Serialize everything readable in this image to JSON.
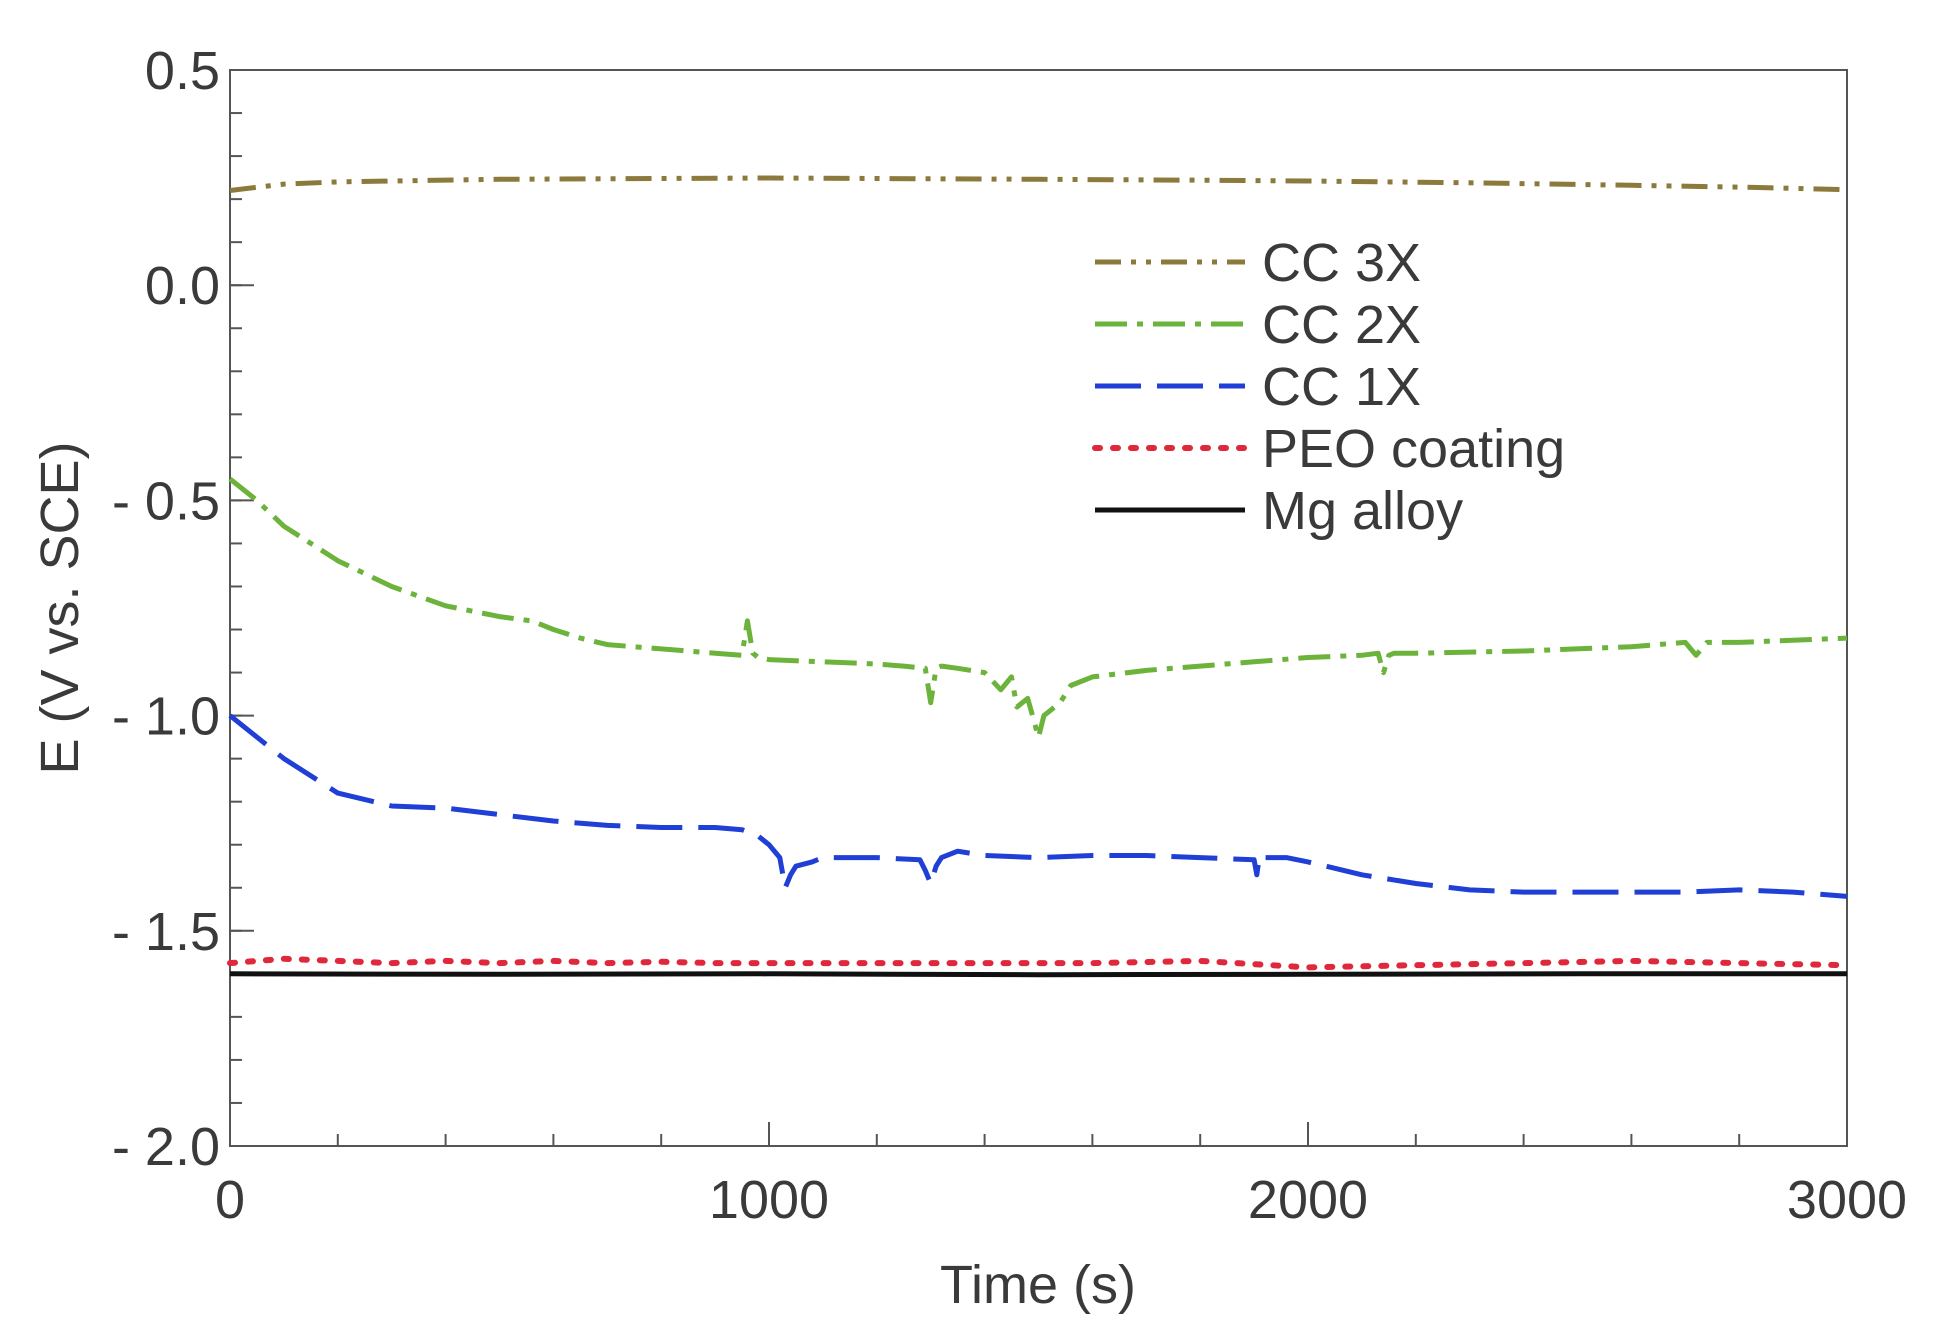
{
  "chart_data": {
    "type": "line",
    "xlabel": "Time (s)",
    "ylabel": "E  (V vs. SCE)",
    "xlim": [
      0,
      3000
    ],
    "ylim": [
      -2.0,
      0.5
    ],
    "xticks": [
      {
        "value": 0,
        "label": "0"
      },
      {
        "value": 1000,
        "label": "1000"
      },
      {
        "value": 2000,
        "label": "2000"
      },
      {
        "value": 3000,
        "label": "3000"
      }
    ],
    "yticks": [
      {
        "value": 0.5,
        "label": "0.5"
      },
      {
        "value": 0.0,
        "label": "0.0"
      },
      {
        "value": -0.5,
        "label": "- 0.5"
      },
      {
        "value": -1.0,
        "label": "- 1.0"
      },
      {
        "value": -1.5,
        "label": "- 1.5"
      },
      {
        "value": -2.0,
        "label": "- 2.0"
      }
    ],
    "x_minor_step": 200,
    "y_minor_step": 0.1,
    "grid": false,
    "legend_position": "upper-right",
    "series": [
      {
        "name": "CC 3X",
        "color": "#8c7a3c",
        "style": "dash-dot-dot",
        "x": [
          0,
          100,
          200,
          300,
          500,
          800,
          1000,
          1200,
          1500,
          1800,
          2000,
          2300,
          2600,
          2800,
          3000
        ],
        "y": [
          0.22,
          0.235,
          0.24,
          0.242,
          0.246,
          0.248,
          0.249,
          0.248,
          0.246,
          0.244,
          0.242,
          0.238,
          0.232,
          0.228,
          0.222
        ]
      },
      {
        "name": "CC 2X",
        "color": "#6bb33a",
        "style": "dash-dot",
        "x": [
          0,
          50,
          100,
          200,
          300,
          400,
          500,
          560,
          600,
          650,
          700,
          800,
          900,
          950,
          960,
          970,
          980,
          1000,
          1100,
          1200,
          1250,
          1290,
          1300,
          1310,
          1320,
          1350,
          1400,
          1430,
          1450,
          1460,
          1480,
          1500,
          1510,
          1520,
          1540,
          1560,
          1600,
          1700,
          1800,
          1900,
          2000,
          2100,
          2130,
          2140,
          2150,
          2160,
          2200,
          2400,
          2600,
          2700,
          2720,
          2740,
          2800,
          3000
        ],
        "y": [
          -0.45,
          -0.5,
          -0.56,
          -0.64,
          -0.7,
          -0.745,
          -0.77,
          -0.78,
          -0.8,
          -0.82,
          -0.835,
          -0.845,
          -0.855,
          -0.86,
          -0.78,
          -0.855,
          -0.865,
          -0.87,
          -0.875,
          -0.88,
          -0.885,
          -0.89,
          -0.97,
          -0.89,
          -0.885,
          -0.89,
          -0.9,
          -0.94,
          -0.91,
          -0.98,
          -0.96,
          -1.05,
          -1.0,
          -0.99,
          -0.97,
          -0.93,
          -0.91,
          -0.895,
          -0.885,
          -0.875,
          -0.865,
          -0.86,
          -0.855,
          -0.9,
          -0.86,
          -0.855,
          -0.855,
          -0.85,
          -0.84,
          -0.83,
          -0.86,
          -0.83,
          -0.83,
          -0.82
        ]
      },
      {
        "name": "CC 1X",
        "color": "#1f3fd6",
        "style": "long-dash",
        "x": [
          0,
          50,
          100,
          200,
          300,
          400,
          500,
          600,
          700,
          800,
          900,
          950,
          980,
          1000,
          1020,
          1030,
          1040,
          1050,
          1080,
          1100,
          1200,
          1280,
          1290,
          1300,
          1310,
          1320,
          1350,
          1400,
          1500,
          1600,
          1700,
          1800,
          1900,
          1905,
          1910,
          1920,
          1960,
          2000,
          2100,
          2200,
          2300,
          2400,
          2500,
          2600,
          2700,
          2800,
          2900,
          3000
        ],
        "y": [
          -1.0,
          -1.05,
          -1.1,
          -1.18,
          -1.21,
          -1.215,
          -1.23,
          -1.245,
          -1.255,
          -1.26,
          -1.26,
          -1.265,
          -1.28,
          -1.3,
          -1.33,
          -1.4,
          -1.37,
          -1.35,
          -1.34,
          -1.33,
          -1.33,
          -1.335,
          -1.36,
          -1.39,
          -1.35,
          -1.33,
          -1.315,
          -1.325,
          -1.33,
          -1.325,
          -1.325,
          -1.33,
          -1.335,
          -1.37,
          -1.325,
          -1.33,
          -1.33,
          -1.34,
          -1.37,
          -1.39,
          -1.405,
          -1.41,
          -1.41,
          -1.41,
          -1.41,
          -1.405,
          -1.41,
          -1.42
        ]
      },
      {
        "name": "PEO coating",
        "color": "#e0283c",
        "style": "dotted",
        "x": [
          0,
          100,
          200,
          300,
          400,
          500,
          600,
          700,
          800,
          900,
          1000,
          1200,
          1400,
          1600,
          1800,
          2000,
          2200,
          2400,
          2600,
          2800,
          3000
        ],
        "y": [
          -1.575,
          -1.565,
          -1.57,
          -1.575,
          -1.57,
          -1.575,
          -1.57,
          -1.575,
          -1.572,
          -1.575,
          -1.575,
          -1.575,
          -1.575,
          -1.575,
          -1.57,
          -1.585,
          -1.58,
          -1.575,
          -1.57,
          -1.575,
          -1.58
        ]
      },
      {
        "name": "Mg alloy",
        "color": "#111111",
        "style": "solid",
        "x": [
          0,
          500,
          1000,
          1500,
          2000,
          2500,
          3000
        ],
        "y": [
          -1.6,
          -1.601,
          -1.6,
          -1.602,
          -1.601,
          -1.6,
          -1.6
        ]
      }
    ]
  }
}
